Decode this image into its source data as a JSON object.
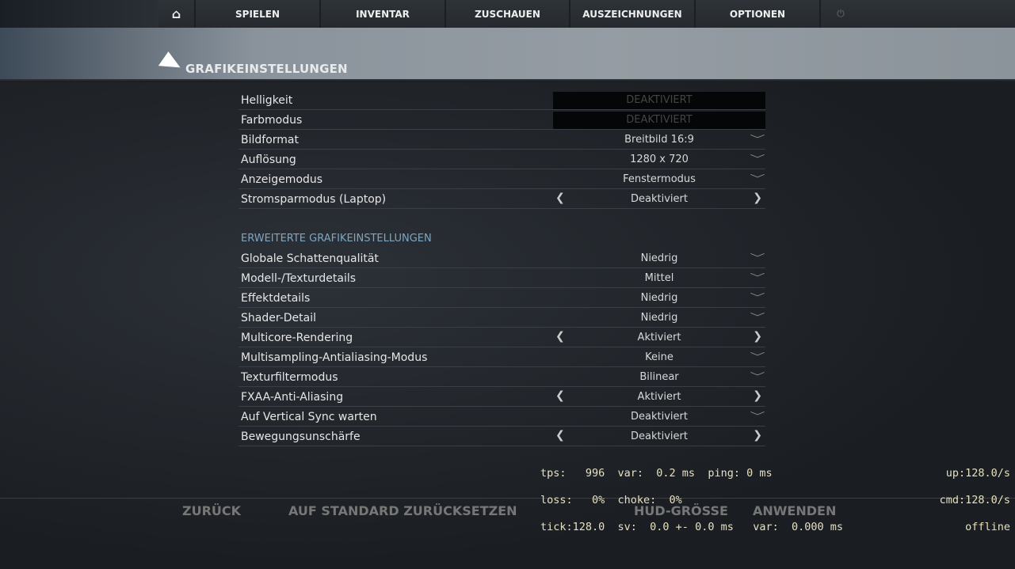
{
  "nav": {
    "home_icon": "home-icon",
    "items": [
      "SPIELEN",
      "INVENTAR",
      "ZUSCHAUEN",
      "AUSZEICHNUNGEN",
      "OPTIONEN"
    ],
    "power_icon": "power-icon"
  },
  "page_title": "GRAFIKEINSTELLUNGEN",
  "basic": [
    {
      "label": "Helligkeit",
      "value": "DEAKTIVIERT",
      "type": "disabled"
    },
    {
      "label": "Farbmodus",
      "value": "DEAKTIVIERT",
      "type": "disabled"
    },
    {
      "label": "Bildformat",
      "value": "Breitbild 16:9",
      "type": "dropdown"
    },
    {
      "label": "Auflösung",
      "value": "1280 x 720",
      "type": "dropdown"
    },
    {
      "label": "Anzeigemodus",
      "value": "Fenstermodus",
      "type": "dropdown"
    },
    {
      "label": "Stromsparmodus (Laptop)",
      "value": "Deaktiviert",
      "type": "toggle"
    }
  ],
  "advanced_header": "ERWEITERTE GRAFIKEINSTELLUNGEN",
  "advanced": [
    {
      "label": "Globale Schattenqualität",
      "value": "Niedrig",
      "type": "dropdown"
    },
    {
      "label": "Modell-/Texturdetails",
      "value": "Mittel",
      "type": "dropdown"
    },
    {
      "label": "Effektdetails",
      "value": "Niedrig",
      "type": "dropdown"
    },
    {
      "label": "Shader-Detail",
      "value": "Niedrig",
      "type": "dropdown"
    },
    {
      "label": "Multicore-Rendering",
      "value": "Aktiviert",
      "type": "toggle"
    },
    {
      "label": "Multisampling-Antialiasing-Modus",
      "value": "Keine",
      "type": "dropdown"
    },
    {
      "label": "Texturfiltermodus",
      "value": "Bilinear",
      "type": "dropdown"
    },
    {
      "label": "FXAA-Anti-Aliasing",
      "value": "Aktiviert",
      "type": "toggle"
    },
    {
      "label": "Auf Vertical Sync warten",
      "value": "Deaktiviert",
      "type": "dropdown"
    },
    {
      "label": "Bewegungsunschärfe",
      "value": "Deaktiviert",
      "type": "toggle"
    }
  ],
  "footer": {
    "back": "ZURÜCK",
    "reset": "AUF STANDARD ZURÜCKSETZEN",
    "hud": "HUD-GRÖSSE",
    "apply": "ANWENDEN"
  },
  "netgraph": {
    "left": [
      "tps:   996  var:  0.2 ms  ping: 0 ms",
      "loss:   0%  choke:  0%",
      "tick:128.0  sv:  0.0 +- 0.0 ms   var:  0.000 ms"
    ],
    "right": [
      "up:128.0/s",
      "cmd:128.0/s",
      "offline"
    ]
  }
}
